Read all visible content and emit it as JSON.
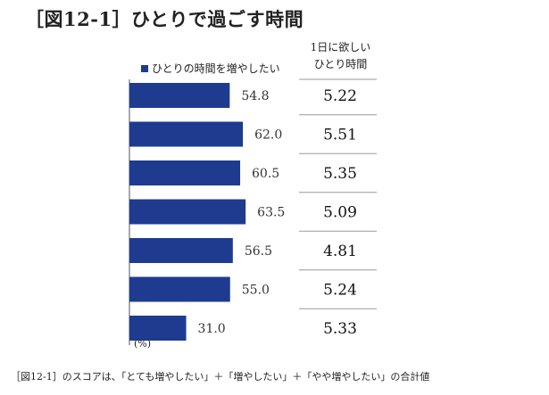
{
  "title": "［図12-1］ひとりで過ごす時間",
  "legend_label": "ひとりの時間を増やしたい",
  "table_header": {
    "line1": "1日に欲しい",
    "line2": "ひとり時間"
  },
  "unit_label": "(%)",
  "footnote": "［図12-1］のスコアは、「とても増やしたい」＋「増やしたい」＋「やや増やしたい」の合計値",
  "colors": {
    "bar": "#1e3b8f",
    "separator": "#9a9a9a",
    "axis": "#555555"
  },
  "chart_data": {
    "type": "bar",
    "orientation": "horizontal",
    "series": [
      {
        "name": "ひとりの時間を増やしたい",
        "values": [
          54.8,
          62.0,
          60.5,
          63.5,
          56.5,
          55.0,
          31.0
        ],
        "labels": [
          "54.8",
          "62.0",
          "60.5",
          "63.5",
          "56.5",
          "55.0",
          "31.0"
        ]
      }
    ],
    "xlim": [
      0,
      100
    ],
    "table_values": [
      "5.22",
      "5.51",
      "5.35",
      "5.09",
      "4.81",
      "5.24",
      "5.33"
    ],
    "grid": false,
    "legend_position": "top"
  }
}
